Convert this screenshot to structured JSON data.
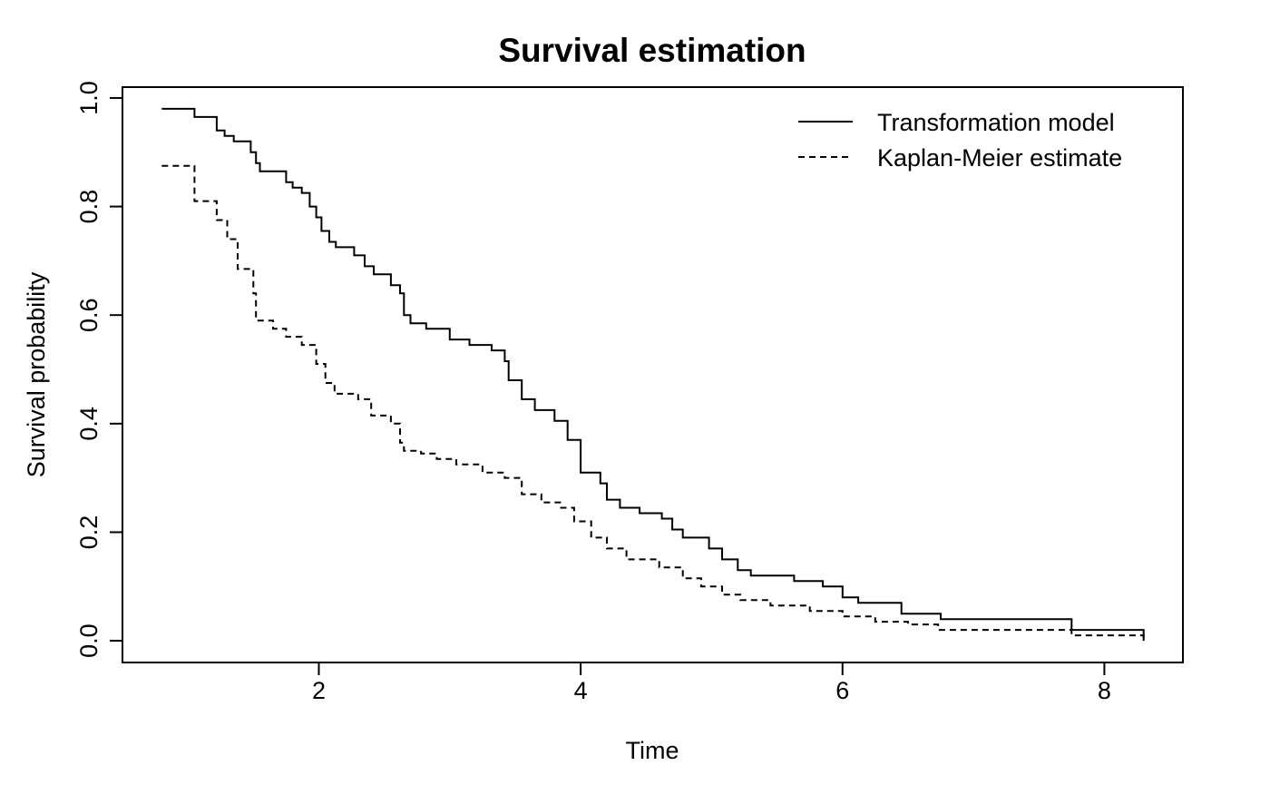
{
  "chart_data": {
    "type": "line",
    "title": "Survival estimation",
    "xlabel": "Time",
    "ylabel": "Survival probability",
    "xlim": [
      0.5,
      8.6
    ],
    "ylim": [
      -0.04,
      1.02
    ],
    "x_ticks": [
      "2",
      "4",
      "6",
      "8"
    ],
    "y_ticks": [
      "0.0",
      "0.2",
      "0.4",
      "0.6",
      "0.8",
      "1.0"
    ],
    "grid": false,
    "legend_position": "top-right",
    "series": [
      {
        "name": "Transformation model",
        "style": "solid",
        "color": "#000000",
        "x": [
          0.8,
          1.05,
          1.22,
          1.28,
          1.35,
          1.48,
          1.52,
          1.55,
          1.62,
          1.75,
          1.8,
          1.87,
          1.93,
          1.98,
          2.02,
          2.08,
          2.13,
          2.27,
          2.35,
          2.42,
          2.55,
          2.62,
          2.65,
          2.7,
          2.82,
          3.0,
          3.15,
          3.32,
          3.42,
          3.45,
          3.55,
          3.65,
          3.8,
          3.9,
          4.0,
          4.15,
          4.2,
          4.3,
          4.45,
          4.62,
          4.7,
          4.78,
          4.98,
          5.08,
          5.2,
          5.3,
          5.63,
          5.85,
          6.0,
          6.12,
          6.45,
          6.75,
          7.75,
          8.3
        ],
        "y": [
          0.98,
          0.965,
          0.94,
          0.93,
          0.92,
          0.9,
          0.88,
          0.865,
          0.865,
          0.845,
          0.835,
          0.825,
          0.8,
          0.78,
          0.755,
          0.735,
          0.725,
          0.71,
          0.69,
          0.675,
          0.655,
          0.64,
          0.6,
          0.585,
          0.575,
          0.555,
          0.545,
          0.535,
          0.515,
          0.48,
          0.445,
          0.425,
          0.405,
          0.37,
          0.31,
          0.29,
          0.26,
          0.245,
          0.235,
          0.225,
          0.205,
          0.19,
          0.17,
          0.15,
          0.13,
          0.12,
          0.11,
          0.1,
          0.08,
          0.07,
          0.05,
          0.04,
          0.02,
          0.01
        ]
      },
      {
        "name": "Kaplan-Meier estimate",
        "style": "dashed",
        "color": "#000000",
        "x": [
          0.8,
          1.05,
          1.22,
          1.3,
          1.38,
          1.5,
          1.52,
          1.65,
          1.75,
          1.87,
          1.98,
          2.05,
          2.12,
          2.3,
          2.4,
          2.55,
          2.62,
          2.65,
          2.78,
          2.9,
          3.05,
          3.25,
          3.42,
          3.55,
          3.7,
          3.85,
          3.95,
          4.08,
          4.2,
          4.35,
          4.6,
          4.78,
          4.92,
          5.08,
          5.22,
          5.45,
          5.75,
          6.0,
          6.25,
          6.5,
          6.73,
          7.75,
          8.3
        ],
        "y": [
          0.875,
          0.81,
          0.775,
          0.74,
          0.685,
          0.64,
          0.59,
          0.575,
          0.56,
          0.545,
          0.51,
          0.475,
          0.455,
          0.445,
          0.415,
          0.4,
          0.365,
          0.35,
          0.345,
          0.335,
          0.325,
          0.31,
          0.3,
          0.27,
          0.255,
          0.245,
          0.22,
          0.19,
          0.17,
          0.15,
          0.135,
          0.115,
          0.1,
          0.085,
          0.075,
          0.065,
          0.055,
          0.045,
          0.035,
          0.03,
          0.02,
          0.01,
          0.005
        ]
      }
    ]
  }
}
